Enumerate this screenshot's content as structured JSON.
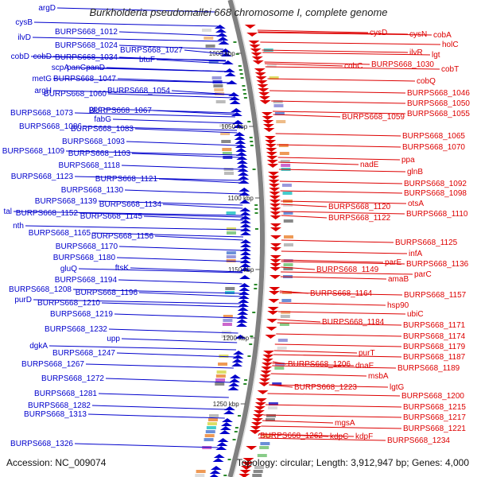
{
  "title": "Burkholderia pseudomallei 668 chromosome I, complete genome",
  "accession_text": "Accession: NC_009074",
  "topology_text": "Topology: circular; Length: 3,912,947 bp; Genes: 4,000",
  "colors": {
    "forward": "#0000cc",
    "reverse": "#dd0000",
    "backbone": "#808080",
    "marker": "#2a8a2a"
  },
  "kbp_labels": [
    {
      "text": "1000 kbp"
    },
    {
      "text": "1050 kbp"
    },
    {
      "text": "1100 kbp"
    },
    {
      "text": "1150 kbp"
    },
    {
      "text": "1200 kbp"
    },
    {
      "text": "1250 kbp"
    }
  ],
  "left_labels": [
    {
      "text": "argD"
    },
    {
      "text": "cysB"
    },
    {
      "text": "BURPS668_1012"
    },
    {
      "text": "ilvD"
    },
    {
      "text": "BURPS668_1024"
    },
    {
      "text": "BURPS668_1027"
    },
    {
      "text": "cobD"
    },
    {
      "text": "cobD"
    },
    {
      "text": "BURPS668_1034"
    },
    {
      "text": "btuF"
    },
    {
      "text": "scpA"
    },
    {
      "text": "panC"
    },
    {
      "text": "panD"
    },
    {
      "text": "metG"
    },
    {
      "text": "BURPS668_1047"
    },
    {
      "text": "argH"
    },
    {
      "text": "BURPS668_1054"
    },
    {
      "text": "BURPS668_1060"
    },
    {
      "text": "ppc"
    },
    {
      "text": "BURPS668_1073"
    },
    {
      "text": "BURPS668_1067"
    },
    {
      "text": "fabG"
    },
    {
      "text": "BURPS668_1086"
    },
    {
      "text": "BURPS668_1083"
    },
    {
      "text": "BURPS668_1093"
    },
    {
      "text": "BURPS668_1109"
    },
    {
      "text": "BURPS668_1103"
    },
    {
      "text": "BURPS668_1118"
    },
    {
      "text": "BURPS668_1123"
    },
    {
      "text": "BURPS668_1121"
    },
    {
      "text": "BURPS668_1130"
    },
    {
      "text": "BURPS668_1139"
    },
    {
      "text": "BURPS668_1134"
    },
    {
      "text": "tal"
    },
    {
      "text": "BURPS668_1152"
    },
    {
      "text": "BURPS668_1145"
    },
    {
      "text": "nth"
    },
    {
      "text": "BURPS668_1165"
    },
    {
      "text": "BURPS668_1156"
    },
    {
      "text": "BURPS668_1170"
    },
    {
      "text": "BURPS668_1180"
    },
    {
      "text": "gluQ"
    },
    {
      "text": "ftsK"
    },
    {
      "text": "BURPS668_1194"
    },
    {
      "text": "BURPS668_1208"
    },
    {
      "text": "BURPS668_1196"
    },
    {
      "text": "purD"
    },
    {
      "text": "BURPS668_1210"
    },
    {
      "text": "BURPS668_1219"
    },
    {
      "text": "BURPS668_1232"
    },
    {
      "text": "upp"
    },
    {
      "text": "dgkA"
    },
    {
      "text": "BURPS668_1247"
    },
    {
      "text": "BURPS668_1267"
    },
    {
      "text": "BURPS668_1272"
    },
    {
      "text": "BURPS668_1281"
    },
    {
      "text": "BURPS668_1282"
    },
    {
      "text": "BURPS668_1313"
    },
    {
      "text": "BURPS668_1326"
    }
  ],
  "right_labels": [
    {
      "text": "cysD"
    },
    {
      "text": "cysN"
    },
    {
      "text": "cobA"
    },
    {
      "text": "holC"
    },
    {
      "text": "ilvR"
    },
    {
      "text": "lgt"
    },
    {
      "text": "BURPS668_1030"
    },
    {
      "text": "cobC"
    },
    {
      "text": "cobT"
    },
    {
      "text": "cobQ"
    },
    {
      "text": "BURPS668_1046"
    },
    {
      "text": "BURPS668_1050"
    },
    {
      "text": "BURPS668_1055"
    },
    {
      "text": "BURPS668_1059"
    },
    {
      "text": "BURPS668_1065"
    },
    {
      "text": "BURPS668_1070"
    },
    {
      "text": "ppa"
    },
    {
      "text": "nadE"
    },
    {
      "text": "glnB"
    },
    {
      "text": "BURPS668_1092"
    },
    {
      "text": "BURPS668_1098"
    },
    {
      "text": "otsA"
    },
    {
      "text": "BURPS668_1120"
    },
    {
      "text": "BURPS668_1110"
    },
    {
      "text": "BURPS668_1122"
    },
    {
      "text": "BURPS668_1125"
    },
    {
      "text": "infA"
    },
    {
      "text": "parE"
    },
    {
      "text": "BURPS668_1136"
    },
    {
      "text": "BURPS668_1149"
    },
    {
      "text": "parC"
    },
    {
      "text": "amaB"
    },
    {
      "text": "BURPS668_1164"
    },
    {
      "text": "BURPS668_1157"
    },
    {
      "text": "hsp90"
    },
    {
      "text": "ubiC"
    },
    {
      "text": "BURPS668_1184"
    },
    {
      "text": "BURPS668_1171"
    },
    {
      "text": "BURPS668_1174"
    },
    {
      "text": "BURPS668_1179"
    },
    {
      "text": "purT"
    },
    {
      "text": "BURPS668_1187"
    },
    {
      "text": "BURPS668_1206"
    },
    {
      "text": "dnaE"
    },
    {
      "text": "BURPS668_1189"
    },
    {
      "text": "msbA"
    },
    {
      "text": "lgtG"
    },
    {
      "text": "BURPS668_1223"
    },
    {
      "text": "BURPS668_1200"
    },
    {
      "text": "BURPS668_1215"
    },
    {
      "text": "BURPS668_1217"
    },
    {
      "text": "mgsA"
    },
    {
      "text": "BURPS668_1221"
    },
    {
      "text": "BURPS668_1262"
    },
    {
      "text": "kdpC"
    },
    {
      "text": "kdpF"
    },
    {
      "text": "BURPS668_1234"
    }
  ]
}
